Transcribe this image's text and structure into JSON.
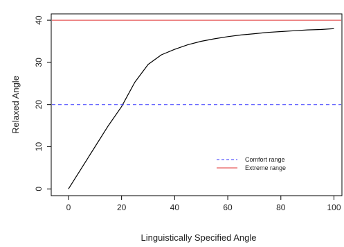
{
  "chart_data": {
    "type": "line",
    "title": "",
    "xlabel": "Linguistically Specified Angle",
    "ylabel": "Relaxed Angle",
    "xlim": [
      -6.5,
      103
    ],
    "ylim": [
      -1.6,
      41.5
    ],
    "xticks": [
      0,
      20,
      40,
      60,
      80,
      100
    ],
    "yticks": [
      0,
      10,
      20,
      30,
      40
    ],
    "grid": false,
    "legend_position": "bottom-right",
    "series": [
      {
        "type": "curve",
        "color": "#000000",
        "dash": "solid",
        "x": [
          0,
          5,
          10,
          15,
          20,
          25,
          30,
          35,
          40,
          45,
          50,
          55,
          60,
          65,
          70,
          75,
          80,
          85,
          90,
          95,
          100
        ],
        "y": [
          0,
          5,
          10,
          15,
          19.5,
          25.3,
          29.5,
          31.8,
          33.1,
          34.2,
          35.0,
          35.6,
          36.1,
          36.5,
          36.8,
          37.1,
          37.3,
          37.5,
          37.7,
          37.8,
          38.0
        ]
      },
      {
        "type": "hline",
        "name": "Comfort range",
        "y": 20,
        "color": "#3333ff",
        "dash": "dashed"
      },
      {
        "type": "hline",
        "name": "Extreme range",
        "y": 40,
        "color": "#e03030",
        "dash": "solid"
      }
    ]
  }
}
